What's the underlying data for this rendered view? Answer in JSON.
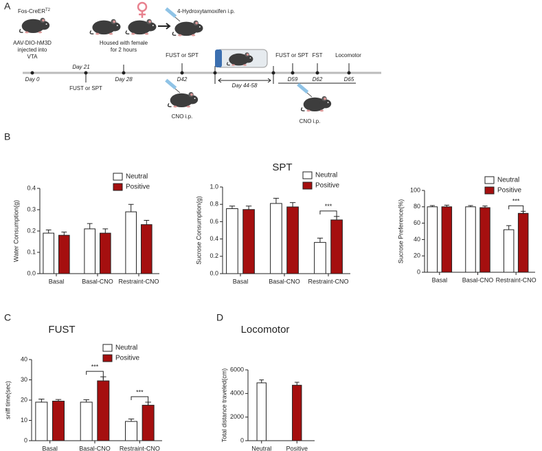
{
  "panel_labels": [
    "A",
    "B",
    "C",
    "D"
  ],
  "timeline": {
    "strain": "Fos-CreER",
    "strain_sup": "T2",
    "injection": [
      "AAV-DIO-hM3D",
      "injected into",
      "VTA"
    ],
    "housing": [
      "Housed with female",
      "for 2 hours"
    ],
    "drug": "4-Hydroxytamoxifen i.p.",
    "days": [
      "Day 0",
      "Day 21",
      "Day 28",
      "D42",
      "Day  44-58",
      "D59",
      "D62",
      "D65"
    ],
    "tests": [
      "FUST or SPT",
      "FUST or SPT",
      "FUST or SPT",
      "FST",
      "Locomotor"
    ],
    "cno": [
      "CNO i.p.",
      "CNO i.p."
    ]
  },
  "chart_data": [
    {
      "type": "bar",
      "ylabel": "Water Consumption(g)",
      "categories": [
        "Basal",
        "Basal-CNO",
        "Restraint-CNO"
      ],
      "series": [
        {
          "name": "Neutral",
          "color": "#ffffff",
          "values": [
            0.19,
            0.21,
            0.29
          ],
          "errors": [
            0.015,
            0.025,
            0.035
          ]
        },
        {
          "name": "Positive",
          "color": "#a50f0f",
          "values": [
            0.18,
            0.19,
            0.23
          ],
          "errors": [
            0.015,
            0.02,
            0.02
          ]
        }
      ],
      "ylim": [
        0,
        0.4
      ],
      "yticks": [
        {
          "value": 0,
          "label": "0.0"
        },
        0.1,
        0.2,
        0.3,
        0.4
      ],
      "legend": "upper right"
    },
    {
      "type": "bar",
      "title": "SPT",
      "ylabel": "Sucrose Consumption(g)",
      "categories": [
        "Basal",
        "Basal-CNO",
        "Restraint-CNO"
      ],
      "series": [
        {
          "name": "Neutral",
          "color": "#ffffff",
          "values": [
            0.75,
            0.81,
            0.36
          ],
          "errors": [
            0.03,
            0.06,
            0.05
          ]
        },
        {
          "name": "Positive",
          "color": "#a50f0f",
          "values": [
            0.74,
            0.77,
            0.62
          ],
          "errors": [
            0.04,
            0.05,
            0.04
          ]
        }
      ],
      "significance": [
        null,
        null,
        "***"
      ],
      "ylim": [
        0,
        1
      ],
      "yticks": [
        {
          "value": 0,
          "label": "0.0"
        },
        0.2,
        0.4,
        0.6,
        0.8,
        {
          "value": 1,
          "label": "1.0"
        }
      ],
      "legend": "upper right"
    },
    {
      "type": "bar",
      "ylabel": "Sucrose Preference(%)",
      "categories": [
        "Basal",
        "Basal-CNO",
        "Restraint-CNO"
      ],
      "series": [
        {
          "name": "Neutral",
          "color": "#ffffff",
          "values": [
            80,
            80,
            52
          ],
          "errors": [
            1.5,
            1.5,
            5
          ]
        },
        {
          "name": "Positive",
          "color": "#a50f0f",
          "values": [
            80,
            79,
            72
          ],
          "errors": [
            2,
            2,
            2.5
          ]
        }
      ],
      "significance": [
        null,
        null,
        "***"
      ],
      "ylim": [
        0,
        100
      ],
      "yticks": [
        0,
        20,
        40,
        60,
        80,
        100
      ],
      "legend": "upper right"
    },
    {
      "type": "bar",
      "title": "FUST",
      "ylabel": "sniff time(sec)",
      "categories": [
        "Basal",
        "Basal-CNO",
        "Restraint-CNO"
      ],
      "series": [
        {
          "name": "Neutral",
          "color": "#ffffff",
          "values": [
            19,
            19,
            9.5
          ],
          "errors": [
            1.5,
            1.2,
            1.2
          ]
        },
        {
          "name": "Positive",
          "color": "#a50f0f",
          "values": [
            19.5,
            29.5,
            17.5
          ],
          "errors": [
            0.8,
            2,
            1.5
          ]
        }
      ],
      "significance": [
        null,
        "***",
        "***"
      ],
      "ylim": [
        0,
        40
      ],
      "yticks": [
        0,
        10,
        20,
        30,
        40
      ],
      "legend": "upper right"
    },
    {
      "type": "bar",
      "title": "Locomotor",
      "ylabel": "Total distance traveled(cm)",
      "categories": [
        "Neutral",
        "Positive"
      ],
      "values": [
        4900,
        4700
      ],
      "errors": [
        250,
        250
      ],
      "colors": [
        "#ffffff",
        "#a50f0f"
      ],
      "ylim": [
        0,
        6000
      ],
      "yticks": [
        0,
        2000,
        4000,
        6000
      ]
    }
  ]
}
